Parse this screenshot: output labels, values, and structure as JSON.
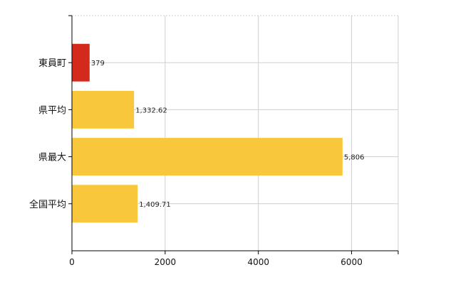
{
  "chart_data": {
    "type": "bar",
    "orientation": "horizontal",
    "categories": [
      "東員町",
      "県平均",
      "県最大",
      "全国平均"
    ],
    "values": [
      379,
      1332.62,
      5806,
      1409.71
    ],
    "value_labels": [
      "379",
      "1,332.62",
      "5,806",
      "1,409.71"
    ],
    "bar_colors": [
      "#d42a1e",
      "#f9c73c",
      "#f9c73c",
      "#f9c73c"
    ],
    "xlim": [
      0,
      7000
    ],
    "x_ticks": [
      0,
      2000,
      4000,
      6000
    ],
    "x_tick_labels": [
      "0",
      "2000",
      "4000",
      "6000"
    ],
    "title": "",
    "xlabel": "",
    "ylabel": "",
    "grid": true,
    "legend": "none"
  }
}
